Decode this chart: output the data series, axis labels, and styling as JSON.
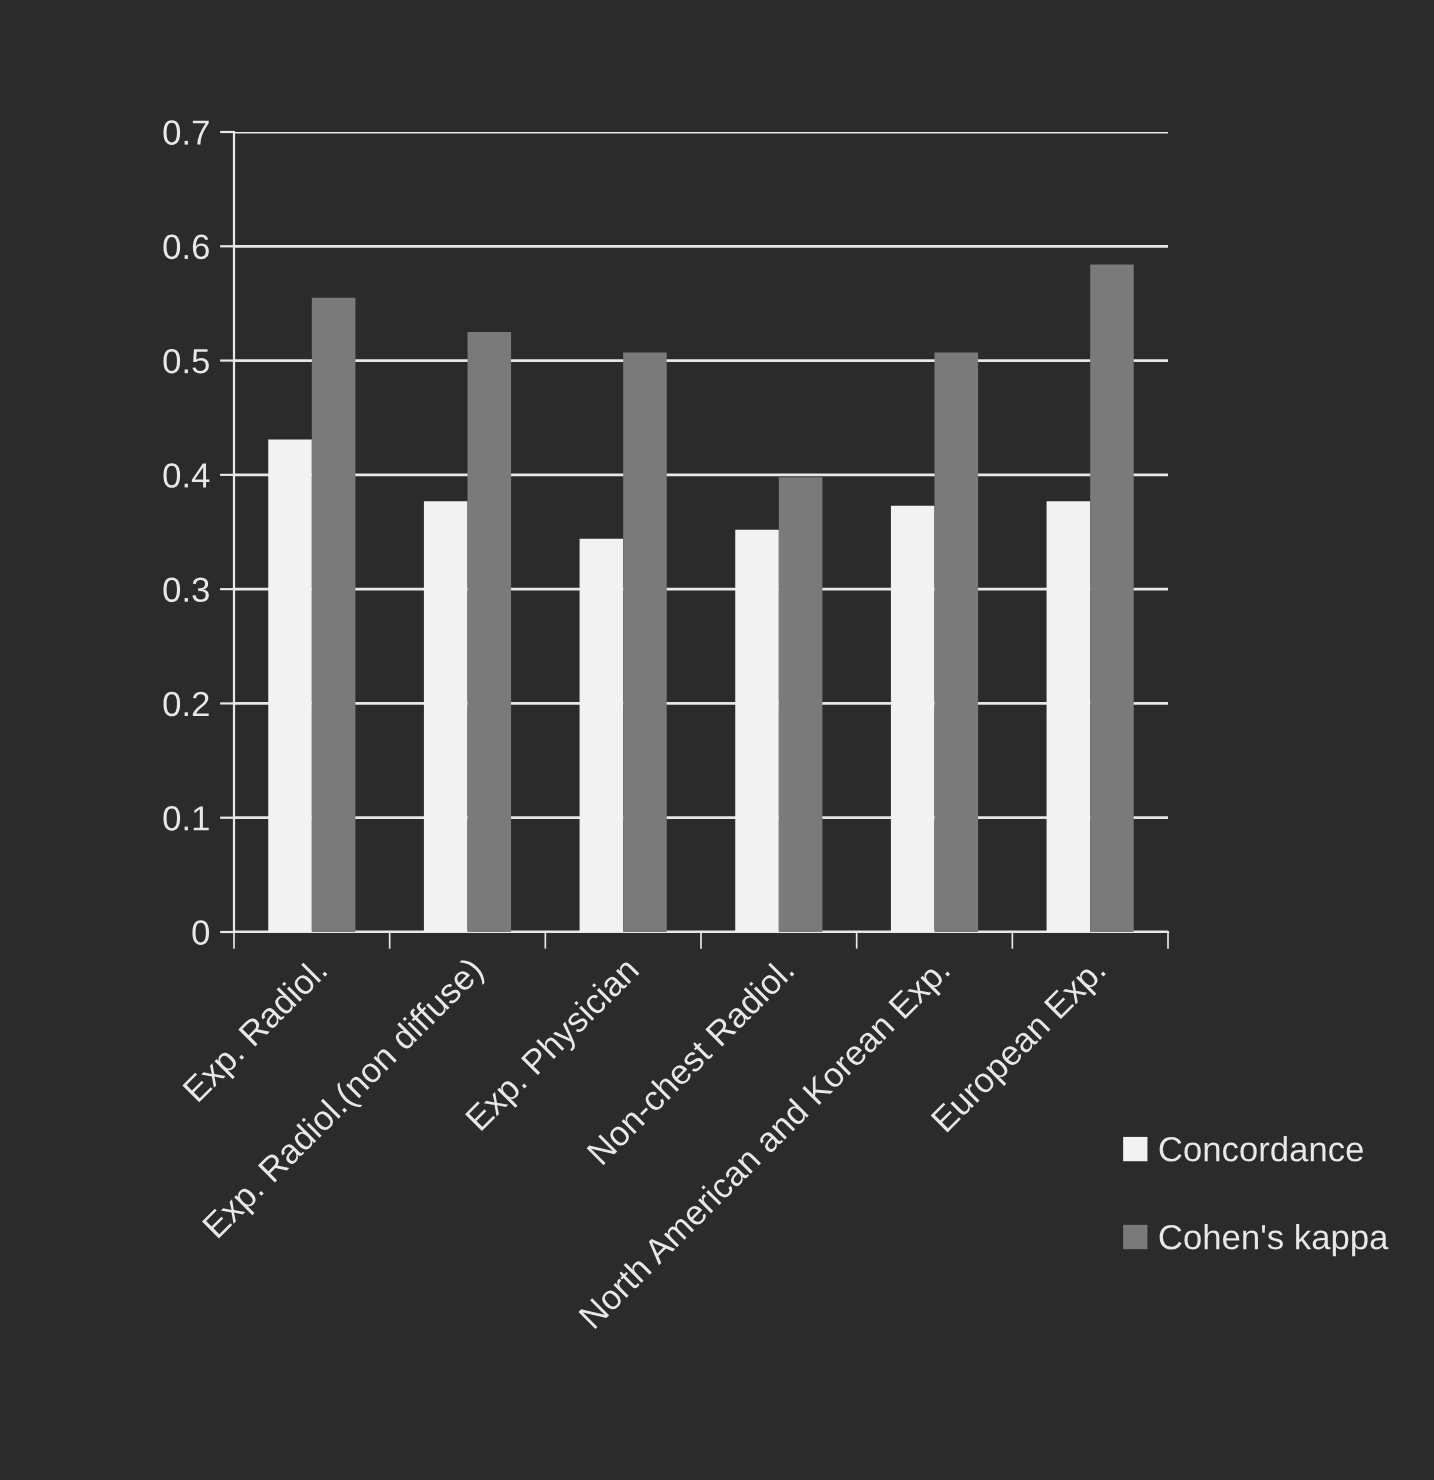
{
  "chart_data": {
    "type": "bar",
    "categories": [
      "Exp. Radiol.",
      "Exp. Radiol.(non diffuse)",
      "Exp. Physician",
      "Non-chest Radiol.",
      "North American and Korean Exp.",
      "European Exp."
    ],
    "series": [
      {
        "name": "Concordance",
        "color": "#f2f2f2",
        "values": [
          0.431,
          0.377,
          0.344,
          0.352,
          0.373,
          0.377
        ]
      },
      {
        "name": "Cohen's kappa",
        "color": "#7a7a7a",
        "values": [
          0.555,
          0.525,
          0.507,
          0.398,
          0.507,
          0.584
        ]
      }
    ],
    "ylim": [
      0,
      0.7
    ],
    "yticks": [
      {
        "value": 0,
        "label": "0"
      },
      0.1,
      0.2,
      0.3,
      0.4,
      0.5,
      0.6,
      0.7
    ],
    "grid": "y",
    "legend": "bottom right"
  }
}
